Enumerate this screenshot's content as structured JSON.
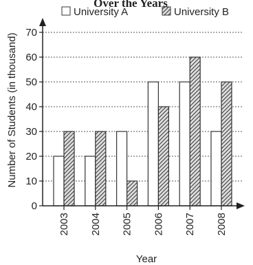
{
  "chart_data": {
    "type": "bar",
    "title": "Over the Years",
    "xlabel": "Year",
    "ylabel": "Number of Students (in thousand)",
    "ylim": [
      0,
      70
    ],
    "yticks": [
      0,
      10,
      20,
      30,
      40,
      50,
      60,
      70
    ],
    "grid": true,
    "legend": "top",
    "categories": [
      "2003",
      "2004",
      "2005",
      "2006",
      "2007",
      "2008"
    ],
    "series": [
      {
        "name": "University A",
        "values": [
          20,
          20,
          30,
          50,
          50,
          30
        ],
        "pattern": "none",
        "color": "#ffffff"
      },
      {
        "name": "University B",
        "values": [
          30,
          30,
          10,
          40,
          60,
          50
        ],
        "pattern": "hatched",
        "color": "#555555"
      }
    ]
  }
}
